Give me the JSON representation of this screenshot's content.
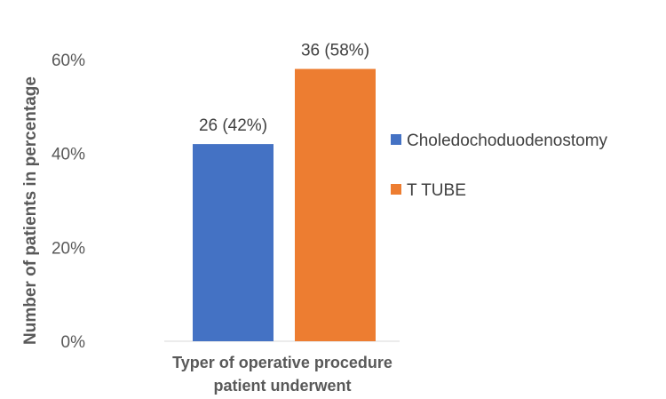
{
  "chart_data": {
    "type": "bar",
    "categories": [
      "Typer of operative procedure patient underwent"
    ],
    "xlabel_lines": [
      "Typer of operative procedure",
      "patient underwent"
    ],
    "ylabel": "Number of patients in percentage",
    "ylim": [
      0,
      60
    ],
    "yticks": [
      0,
      20,
      40,
      60
    ],
    "ytick_labels": [
      "0%",
      "20%",
      "40%",
      "60%"
    ],
    "grid": false,
    "legend_position": "right",
    "series": [
      {
        "name": "Choledochoduodenostomy",
        "color": "#4472C4",
        "values": [
          42
        ],
        "data_label": "26 (42%)"
      },
      {
        "name": "T TUBE",
        "color": "#ED7D31",
        "values": [
          58
        ],
        "data_label": "36 (58%)"
      }
    ]
  }
}
